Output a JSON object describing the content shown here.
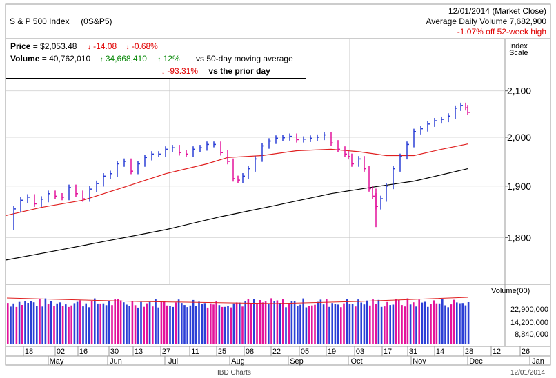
{
  "header": {
    "index_name": "S & P 500 Index",
    "ticker": "(0S&P5)",
    "date_label": "12/01/2014 (Market Close)",
    "avg_volume_label": "Average Daily Volume 7,682,900",
    "off_high_label": "-1.07% off 52-week high"
  },
  "price_box": {
    "price_label": "Price",
    "price_value": " = $2,053.48",
    "price_change": "-14.08",
    "price_change_pct": "-0.68%",
    "volume_label": "Volume",
    "volume_value": " = 40,762,010",
    "volume_change": "34,668,410",
    "volume_change_pct": "12%",
    "volume_ma_text": "vs 50-day moving average",
    "prior_change_pct": "-93.31%",
    "prior_day_text": "vs the prior day"
  },
  "axis": {
    "index_scale_label": "Index\nScale",
    "volume_label": "Volume(00)",
    "y_ticks": [
      "2,100",
      "2,000",
      "1,900",
      "1,800"
    ],
    "vol_ticks": [
      "22,900,000",
      "14,200,000",
      "8,840,000"
    ],
    "x_day_ticks": [
      "18",
      "02",
      "16",
      "30",
      "13",
      "27",
      "11",
      "25",
      "08",
      "22",
      "05",
      "19",
      "03",
      "17",
      "31",
      "14",
      "28",
      "12",
      "26"
    ],
    "x_month_ticks": [
      "May",
      "Jun",
      "Jul",
      "Aug",
      "Sep",
      "Oct",
      "Nov",
      "Dec",
      "Jan"
    ],
    "footer_center": "IBD Charts",
    "footer_right": "12/01/2014"
  },
  "colors": {
    "up_bar": "#2b3fd6",
    "down_bar": "#e3139b",
    "ma50": "#e02020",
    "ma200": "#000000",
    "grid": "#d9d9d9"
  },
  "chart_data": {
    "type": "line",
    "title": "S & P 500 Index",
    "ylabel": "Index Scale",
    "ylim": [
      1700,
      2170
    ],
    "y_scale": "log",
    "grid": true,
    "key_points": {
      "last_close": 2053.48,
      "october_low": 1820,
      "recent_high": 2075
    },
    "ma50_endpoints": {
      "start": 1842,
      "end": 1986
    },
    "ma200_endpoints": {
      "start": 1758,
      "end": 1935
    },
    "volume_ylim": [
      0,
      40000000
    ]
  }
}
